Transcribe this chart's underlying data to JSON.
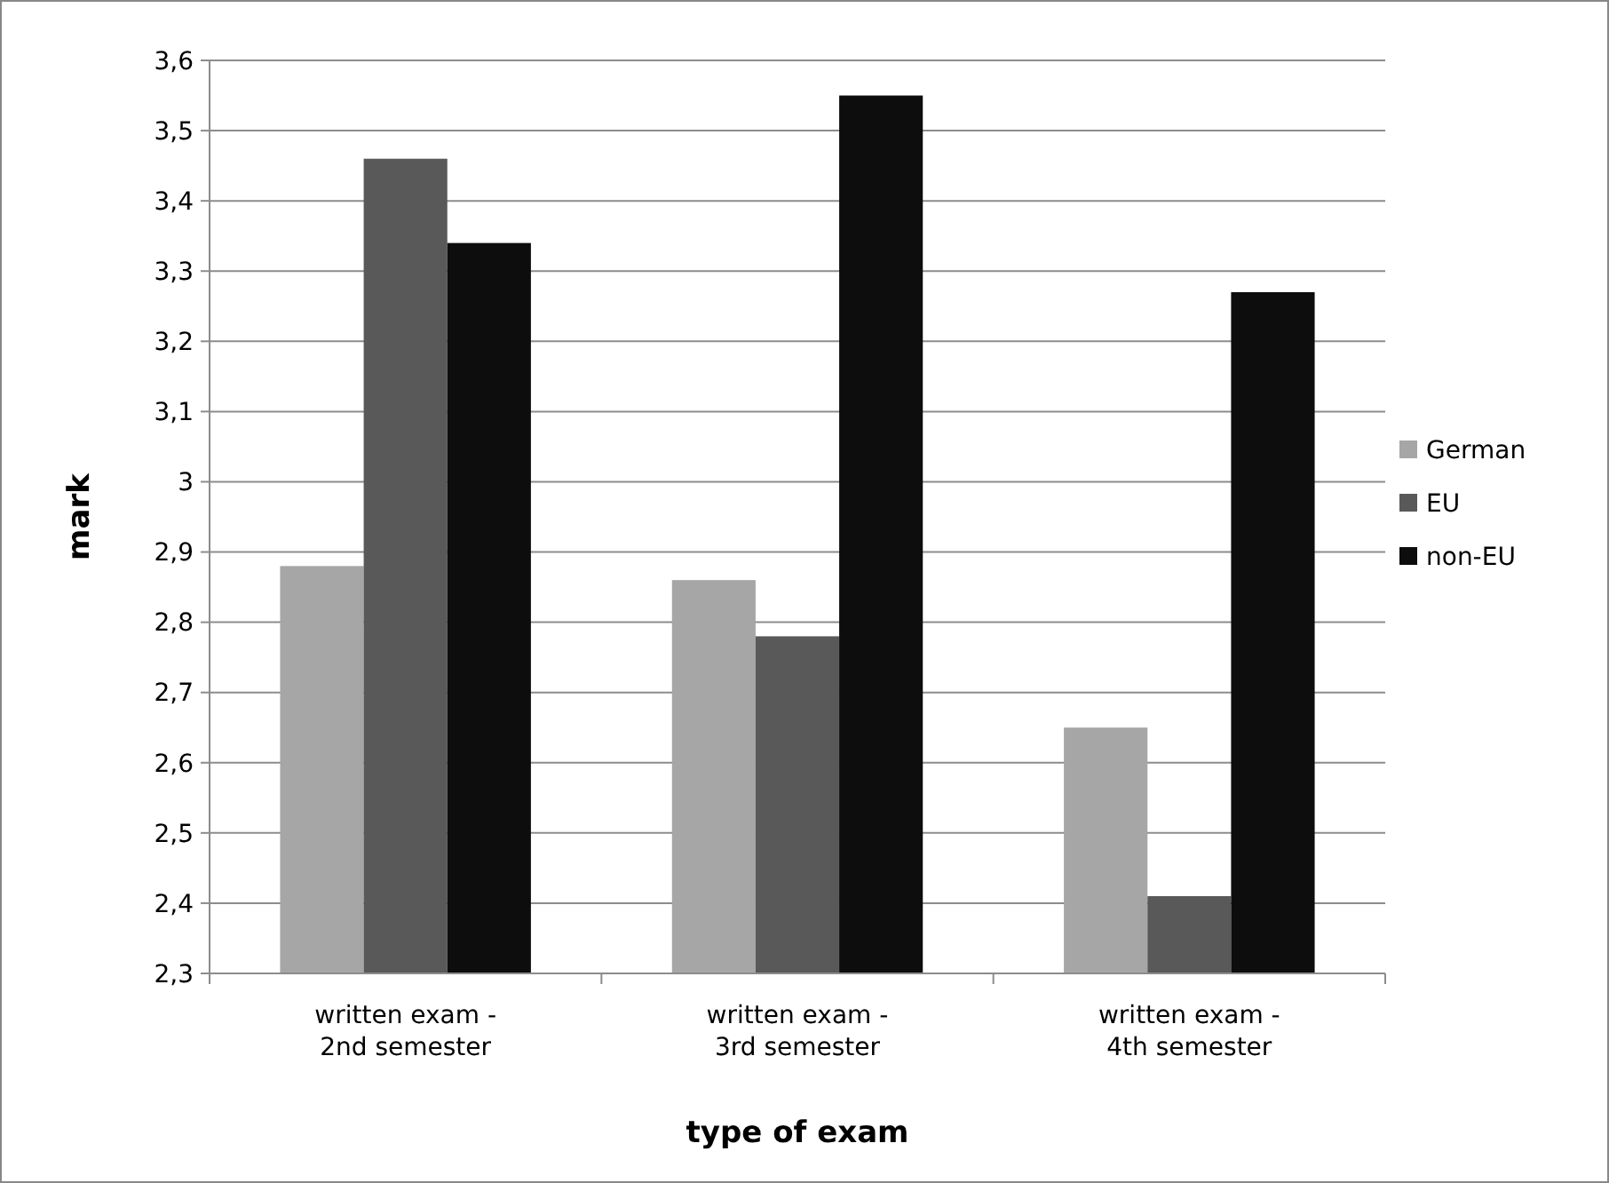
{
  "chart_data": {
    "type": "bar",
    "xlabel": "type of exam",
    "ylabel": "mark",
    "categories": [
      "written exam - 2nd semester",
      "written exam - 3rd semester",
      "written exam - 4th semester"
    ],
    "series": [
      {
        "name": "German",
        "color": "#a6a6a6",
        "values": [
          2.88,
          2.86,
          2.65
        ]
      },
      {
        "name": "EU",
        "color": "#595959",
        "values": [
          3.46,
          2.78,
          2.41
        ]
      },
      {
        "name": "non-EU",
        "color": "#0d0d0d",
        "values": [
          3.34,
          3.55,
          3.27
        ]
      }
    ],
    "ylim": [
      2.3,
      3.6
    ],
    "yticks": [
      {
        "value": 2.3,
        "label": "2,3"
      },
      {
        "value": 2.4,
        "label": "2,4"
      },
      {
        "value": 2.5,
        "label": "2,5"
      },
      {
        "value": 2.6,
        "label": "2,6"
      },
      {
        "value": 2.7,
        "label": "2,7"
      },
      {
        "value": 2.8,
        "label": "2,8"
      },
      {
        "value": 2.9,
        "label": "2,9"
      },
      3,
      {
        "value": 3.1,
        "label": "3,1"
      },
      {
        "value": 3.2,
        "label": "3,2"
      },
      {
        "value": 3.3,
        "label": "3,3"
      },
      {
        "value": 3.4,
        "label": "3,4"
      },
      {
        "value": 3.5,
        "label": "3,5"
      },
      {
        "value": 3.6,
        "label": "3,6"
      }
    ],
    "grid": "y",
    "legend": "right"
  }
}
